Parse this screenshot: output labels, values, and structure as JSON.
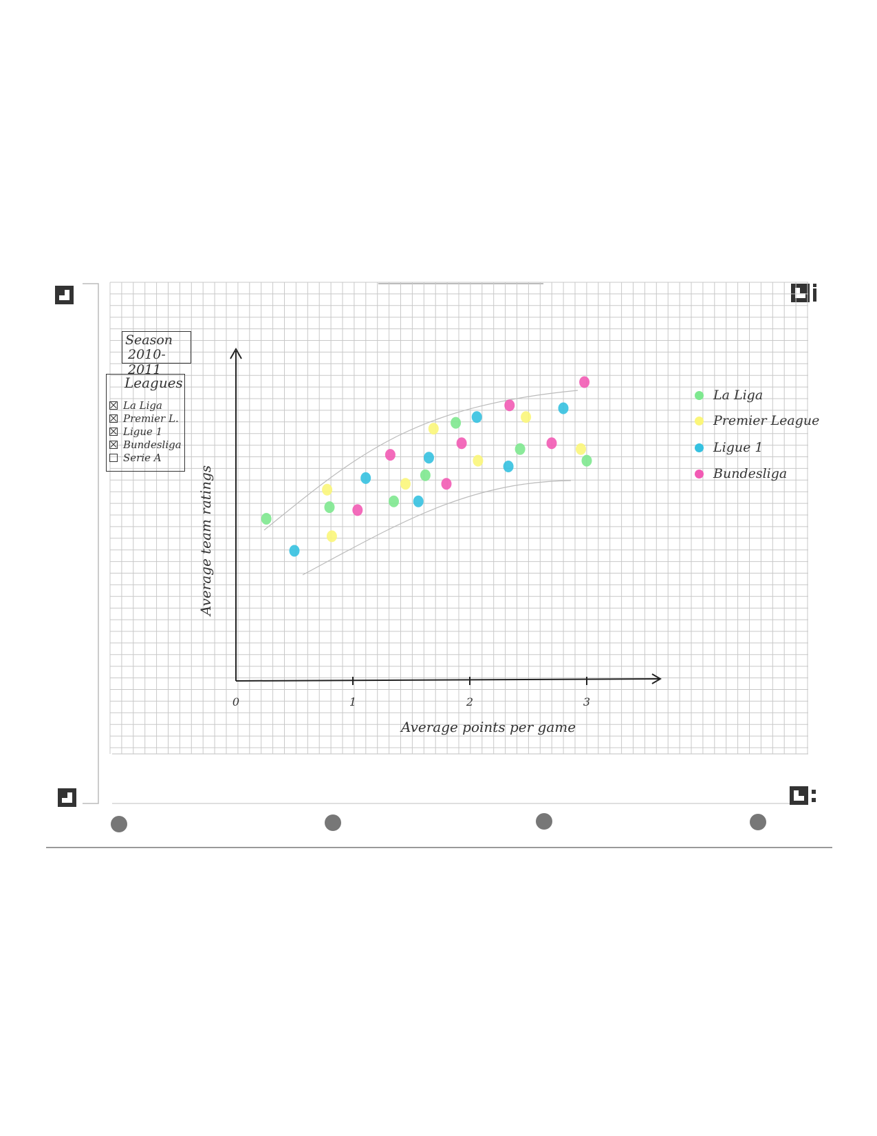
{
  "season_box": {
    "line1": "Season",
    "line2": "2010-2011"
  },
  "filter_box": {
    "title": "Leagues",
    "items": [
      {
        "label": "La Liga",
        "checked": true
      },
      {
        "label": "Premier L.",
        "checked": true
      },
      {
        "label": "Ligue 1",
        "checked": true
      },
      {
        "label": "Bundesliga",
        "checked": true
      },
      {
        "label": "Serie A",
        "checked": false
      }
    ]
  },
  "colors": {
    "La Liga": "#7ee88f",
    "Premier League": "#fbf67a",
    "Ligue 1": "#35c1e0",
    "Bundesliga": "#f25bb4"
  },
  "chart_data": {
    "type": "scatter",
    "title": "",
    "xlabel": "Average points per game",
    "ylabel": "Average team ratings",
    "xlim": [
      0,
      3.6
    ],
    "x_ticks": [
      0,
      1,
      2,
      3
    ],
    "legend_position": "right",
    "grid": true,
    "series": [
      {
        "name": "La Liga",
        "points": [
          [
            0.26,
            0.53
          ],
          [
            0.8,
            0.57
          ],
          [
            1.35,
            0.59
          ],
          [
            1.62,
            0.68
          ],
          [
            1.88,
            0.86
          ],
          [
            2.43,
            0.77
          ],
          [
            3.0,
            0.73
          ]
        ]
      },
      {
        "name": "Premier League",
        "points": [
          [
            0.78,
            0.63
          ],
          [
            0.82,
            0.47
          ],
          [
            1.45,
            0.65
          ],
          [
            1.69,
            0.84
          ],
          [
            2.07,
            0.73
          ],
          [
            2.48,
            0.88
          ],
          [
            2.95,
            0.77
          ]
        ]
      },
      {
        "name": "Ligue 1",
        "points": [
          [
            0.5,
            0.42
          ],
          [
            1.11,
            0.67
          ],
          [
            1.56,
            0.59
          ],
          [
            1.65,
            0.74
          ],
          [
            2.06,
            0.88
          ],
          [
            2.33,
            0.71
          ],
          [
            2.8,
            0.91
          ]
        ]
      },
      {
        "name": "Bundesliga",
        "points": [
          [
            1.04,
            0.56
          ],
          [
            1.32,
            0.75
          ],
          [
            1.8,
            0.65
          ],
          [
            1.93,
            0.79
          ],
          [
            2.34,
            0.92
          ],
          [
            2.7,
            0.79
          ],
          [
            2.98,
            1.0
          ]
        ]
      }
    ]
  }
}
